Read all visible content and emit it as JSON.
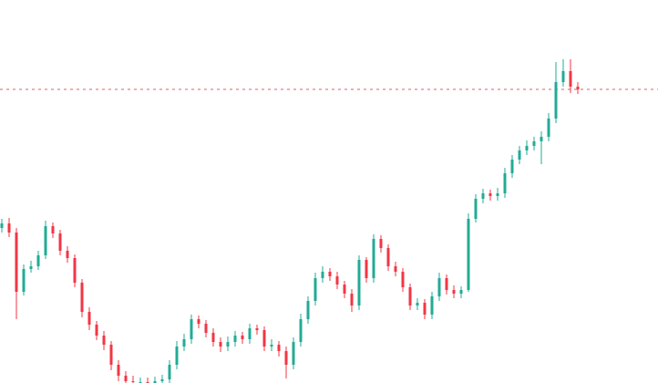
{
  "chart_data": {
    "type": "candlestick",
    "ylim": [
      0,
      420
    ],
    "up_color": "#22ab94",
    "down_color": "#f23645",
    "price_line_color": "#e05c6b",
    "open": [
      170,
      175,
      165,
      100,
      125,
      128,
      140,
      172,
      164,
      145,
      137,
      110,
      78,
      64,
      52,
      42,
      20,
      8,
      2,
      1,
      1,
      0,
      2,
      4,
      20,
      40,
      48,
      70,
      65,
      55,
      45,
      40,
      45,
      52,
      48,
      60,
      58,
      40,
      42,
      35,
      20,
      45,
      70,
      90,
      115,
      122,
      117,
      108,
      98,
      85,
      135,
      115,
      158,
      148,
      128,
      122,
      105,
      85,
      88,
      75,
      95,
      115,
      102,
      98,
      102,
      180,
      202,
      208,
      205,
      208,
      230,
      245,
      255,
      260,
      265,
      270,
      290,
      330,
      342,
      325
    ],
    "high": [
      180,
      181,
      170,
      130,
      134,
      145,
      178,
      176,
      168,
      150,
      141,
      114,
      83,
      68,
      57,
      46,
      25,
      13,
      8,
      6,
      6,
      7,
      9,
      25,
      46,
      54,
      75,
      74,
      69,
      60,
      50,
      51,
      57,
      56,
      65,
      64,
      62,
      48,
      46,
      40,
      50,
      76,
      95,
      121,
      128,
      126,
      122,
      112,
      103,
      140,
      138,
      163,
      162,
      152,
      133,
      126,
      109,
      93,
      92,
      100,
      121,
      119,
      107,
      106,
      186,
      207,
      213,
      212,
      214,
      236,
      250,
      260,
      266,
      270,
      276,
      296,
      352,
      355,
      355,
      330
    ],
    "low": [
      165,
      160,
      70,
      96,
      121,
      124,
      136,
      159,
      140,
      132,
      105,
      72,
      58,
      47,
      36,
      14,
      2,
      -4,
      -5,
      -5,
      -6,
      -5,
      -3,
      -1,
      15,
      35,
      43,
      60,
      50,
      40,
      34,
      35,
      40,
      43,
      43,
      53,
      35,
      35,
      29,
      5,
      15,
      40,
      65,
      85,
      110,
      112,
      103,
      93,
      78,
      80,
      110,
      110,
      143,
      123,
      117,
      100,
      80,
      80,
      70,
      70,
      90,
      97,
      93,
      93,
      100,
      176,
      197,
      200,
      200,
      203,
      225,
      240,
      250,
      255,
      240,
      265,
      285,
      325,
      318,
      317
    ],
    "close": [
      175,
      165,
      100,
      125,
      128,
      140,
      172,
      164,
      145,
      137,
      110,
      78,
      64,
      52,
      42,
      20,
      8,
      2,
      1,
      1,
      0,
      2,
      4,
      20,
      40,
      48,
      70,
      65,
      55,
      45,
      40,
      45,
      52,
      48,
      60,
      58,
      40,
      42,
      35,
      20,
      45,
      70,
      90,
      115,
      122,
      117,
      108,
      98,
      85,
      135,
      115,
      158,
      148,
      128,
      122,
      105,
      85,
      88,
      75,
      95,
      115,
      102,
      98,
      102,
      180,
      202,
      208,
      205,
      208,
      230,
      245,
      255,
      260,
      265,
      270,
      290,
      330,
      342,
      325,
      322
    ]
  }
}
